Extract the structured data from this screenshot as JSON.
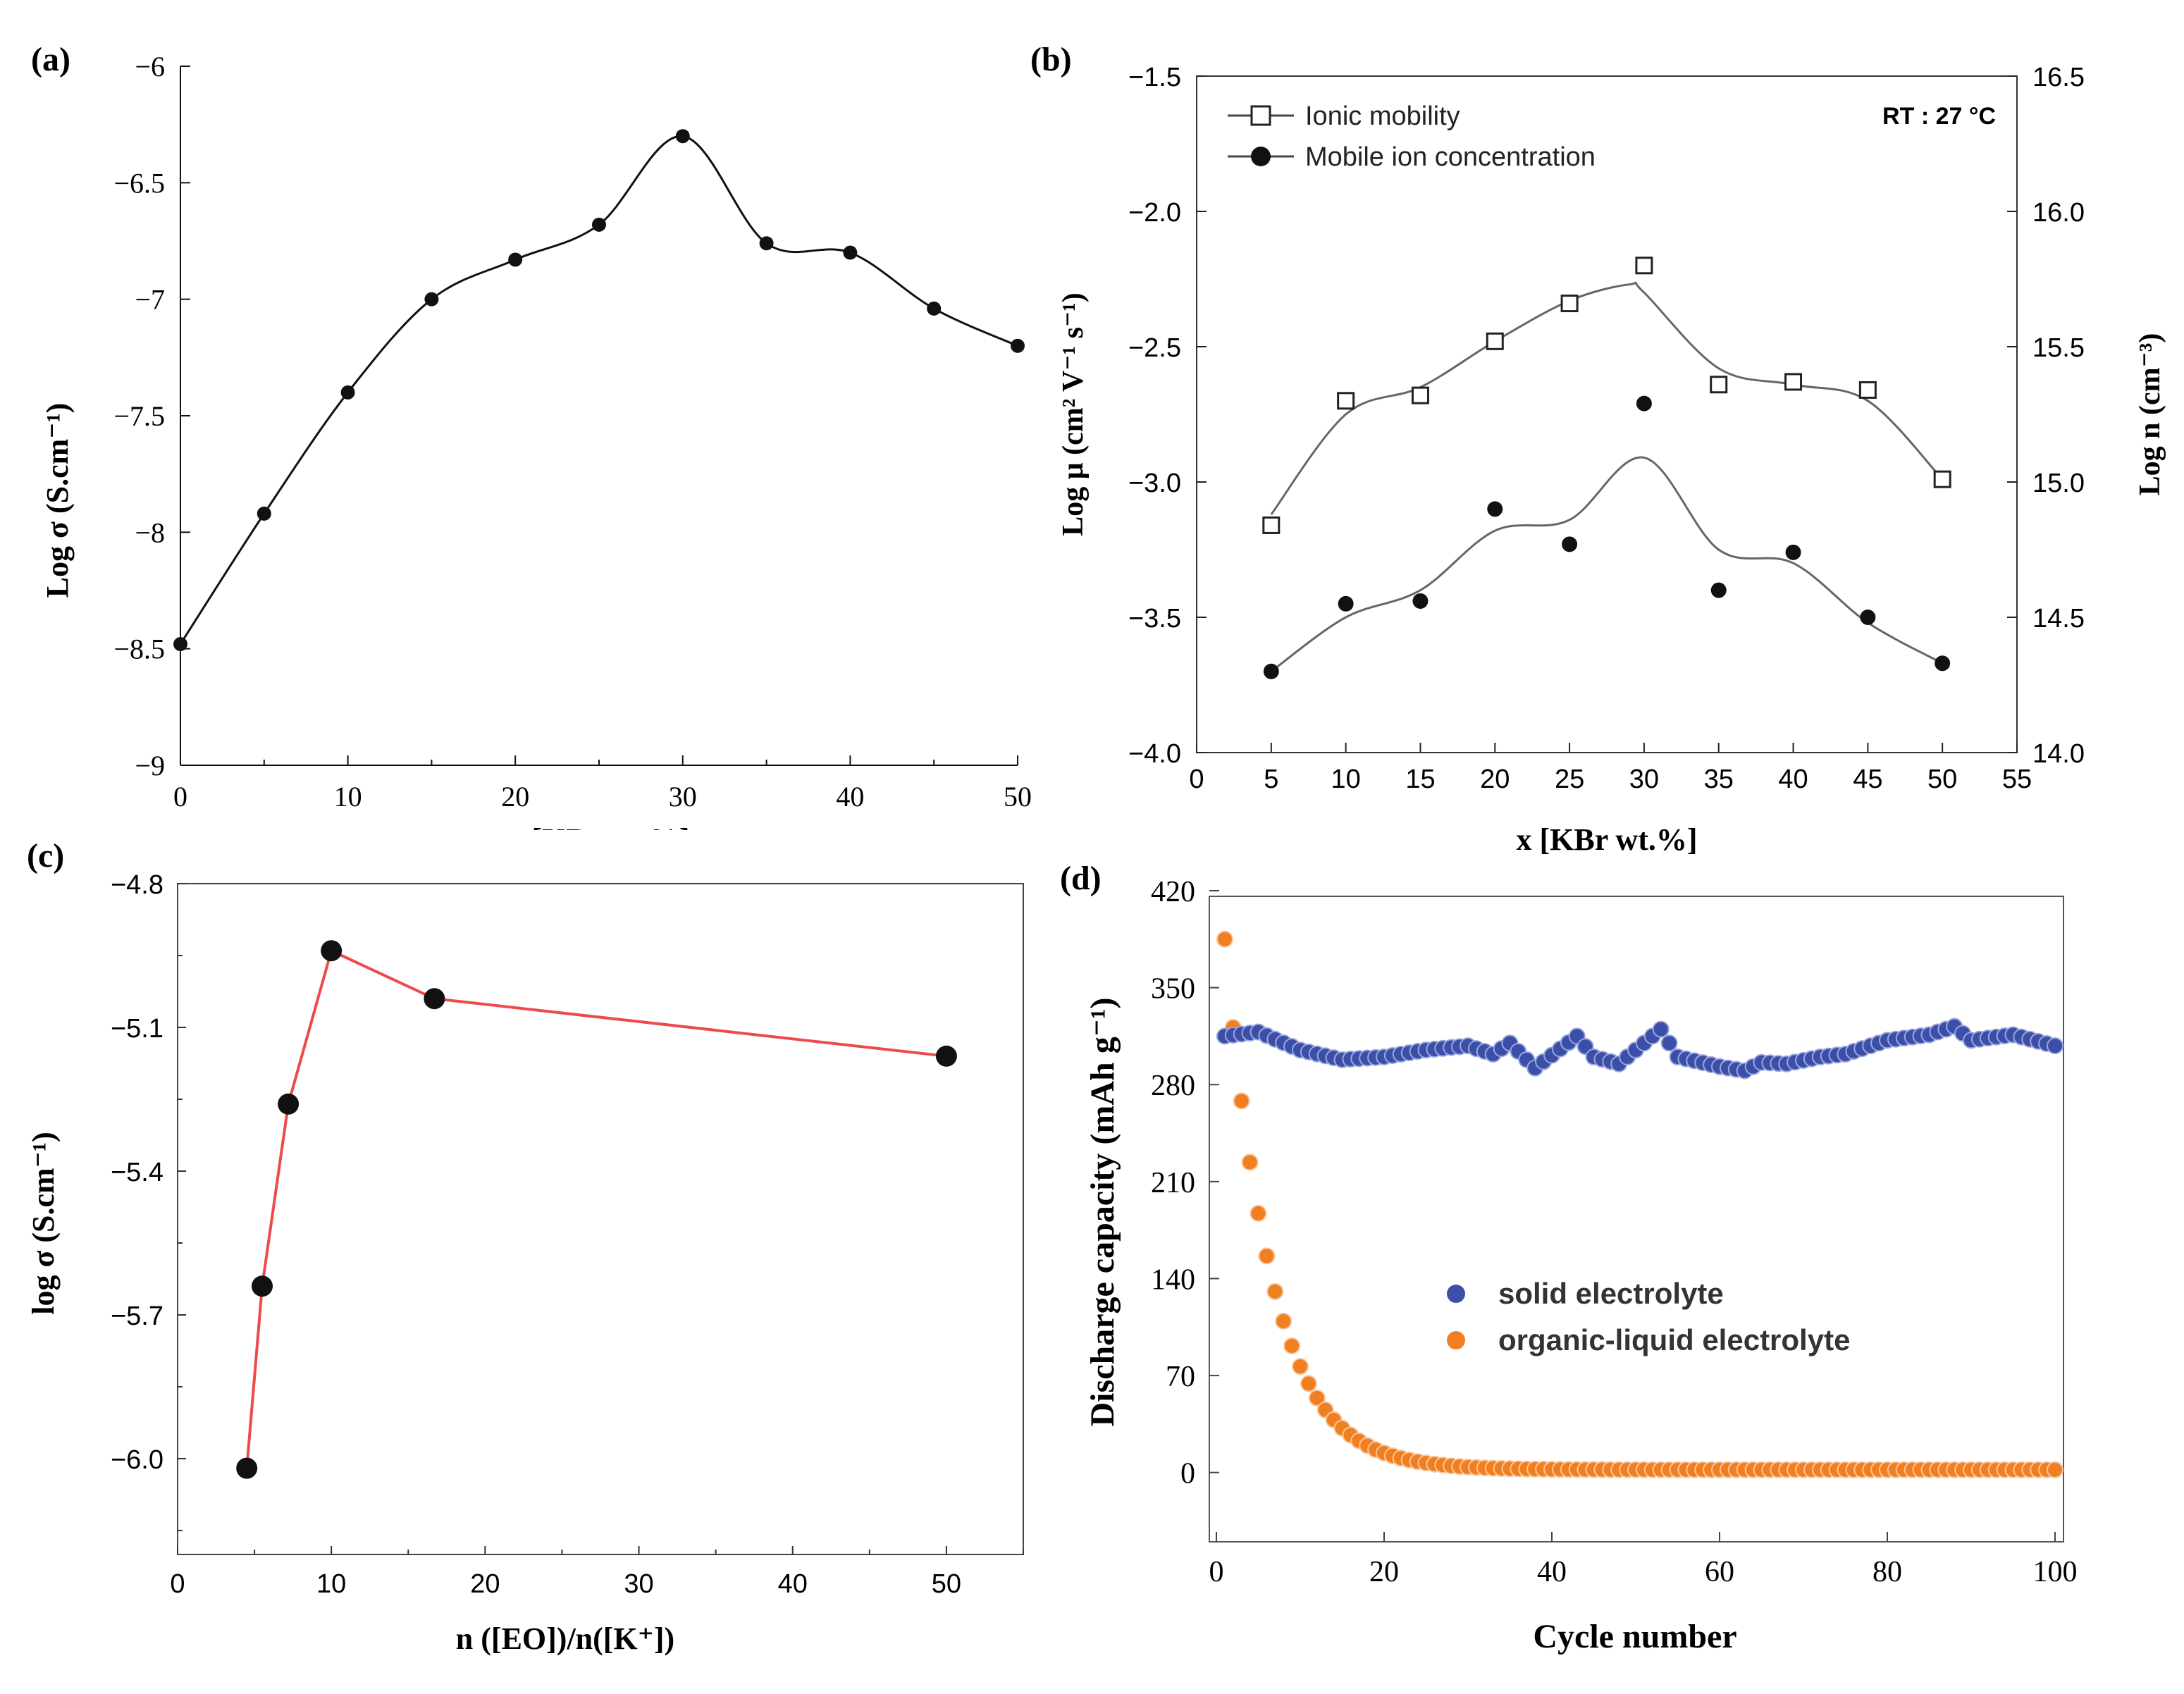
{
  "figure": {
    "panel_labels": [
      "(a)",
      "(b)",
      "(c)",
      "(d)"
    ]
  },
  "chart_data": [
    {
      "id": "a",
      "type": "line",
      "title": "",
      "xlabel": "x [KBr wt.%]",
      "ylabel": "Log σ (S.cm⁻¹)",
      "xlim": [
        0,
        50
      ],
      "ylim": [
        -9,
        -6
      ],
      "xticks": [
        0,
        10,
        20,
        30,
        40,
        50
      ],
      "yticks": [
        -9,
        -8.5,
        -8,
        -7.5,
        -7,
        -6.5,
        -6
      ],
      "ytick_labels": [
        "−9",
        "−8.5",
        "−8",
        "−7.5",
        "−7",
        "−6.5",
        "−6"
      ],
      "series": [
        {
          "name": "conductivity",
          "x": [
            0,
            5,
            10,
            15,
            20,
            25,
            30,
            35,
            40,
            45,
            50
          ],
          "values": [
            -8.48,
            -7.92,
            -7.4,
            -7.0,
            -6.83,
            -6.68,
            -6.3,
            -6.76,
            -6.8,
            -7.04,
            -7.2
          ]
        }
      ]
    },
    {
      "id": "b",
      "type": "scatter",
      "xlabel": "x [KBr wt.%]",
      "ylabel": "Log μ (cm² V⁻¹ s⁻¹)",
      "y2label": "Log n (cm⁻³)",
      "annotation": "RT : 27 °C",
      "xlim": [
        0,
        55
      ],
      "ylim": [
        -4.0,
        -1.5
      ],
      "y2lim": [
        14.0,
        16.5
      ],
      "xticks": [
        0,
        5,
        10,
        15,
        20,
        25,
        30,
        35,
        40,
        45,
        50,
        55
      ],
      "yticks": [
        -4.0,
        -3.5,
        -3.0,
        -2.5,
        -2.0,
        -1.5
      ],
      "ytick_labels": [
        "−4.0",
        "−3.5",
        "−3.0",
        "−2.5",
        "−2.0",
        "−1.5"
      ],
      "y2ticks": [
        14.0,
        14.5,
        15.0,
        15.5,
        16.0,
        16.5
      ],
      "y2tick_labels": [
        "14.0",
        "14.5",
        "15.0",
        "15.5",
        "16.0",
        "16.5"
      ],
      "series": [
        {
          "name": "Ionic mobility",
          "axis": "left",
          "marker": "open-square",
          "x": [
            5,
            10,
            15,
            20,
            25,
            30,
            35,
            40,
            45,
            50
          ],
          "values": [
            -3.16,
            -2.7,
            -2.68,
            -2.48,
            -2.34,
            -2.2,
            -2.64,
            -2.63,
            -2.66,
            -2.99
          ]
        },
        {
          "name": "Mobile ion concentration",
          "axis": "right",
          "marker": "filled-circle",
          "x": [
            5,
            10,
            15,
            20,
            25,
            30,
            35,
            40,
            45,
            50
          ],
          "values": [
            14.3,
            14.55,
            14.56,
            14.9,
            14.77,
            15.29,
            14.6,
            14.74,
            14.5,
            14.33
          ]
        }
      ],
      "fit_curves": [
        {
          "axis": "left",
          "x": [
            5,
            10,
            15,
            20,
            25,
            29,
            30,
            35,
            40,
            45,
            50
          ],
          "values": [
            -3.12,
            -2.75,
            -2.65,
            -2.48,
            -2.33,
            -2.27,
            -2.3,
            -2.58,
            -2.64,
            -2.7,
            -2.99
          ]
        },
        {
          "axis": "right",
          "x": [
            5,
            10,
            15,
            20,
            25,
            30,
            35,
            40,
            45,
            50
          ],
          "values": [
            14.3,
            14.5,
            14.6,
            14.82,
            14.86,
            15.09,
            14.75,
            14.7,
            14.48,
            14.33
          ]
        }
      ]
    },
    {
      "id": "c",
      "type": "line",
      "xlabel": "n ([EO])/n([K⁺])",
      "ylabel": "log σ (S.cm⁻¹)",
      "xlim": [
        0,
        55
      ],
      "ylim": [
        -6.2,
        -4.8
      ],
      "xticks": [
        0,
        10,
        20,
        30,
        40,
        50
      ],
      "yticks": [
        -6.0,
        -5.7,
        -5.4,
        -5.1,
        -4.8
      ],
      "ytick_labels": [
        "−6.0",
        "−5.7",
        "−5.4",
        "−5.1",
        "−4.8"
      ],
      "series": [
        {
          "name": "log σ",
          "x": [
            4.5,
            5.5,
            7.2,
            10,
            16.7,
            50
          ],
          "values": [
            -6.02,
            -5.64,
            -5.26,
            -4.94,
            -5.04,
            -5.16
          ]
        }
      ]
    },
    {
      "id": "d",
      "type": "scatter",
      "xlabel": "Cycle number",
      "ylabel": "Discharge capacity (mAh g⁻¹)",
      "xlim": [
        0,
        100
      ],
      "ylim": [
        -50,
        420
      ],
      "xticks": [
        0,
        20,
        40,
        60,
        80,
        100
      ],
      "yticks": [
        0,
        70,
        140,
        210,
        280,
        350,
        420
      ],
      "series": [
        {
          "name": "solid electrolyte",
          "color": "#3b4fa8",
          "anchors_x": [
            1,
            5,
            10,
            15,
            20,
            25,
            30,
            33,
            35,
            38,
            43,
            45,
            48,
            53,
            55,
            60,
            63,
            65,
            68,
            72,
            75,
            80,
            85,
            88,
            90,
            95,
            100
          ],
          "anchors_y": [
            315,
            318,
            305,
            298,
            300,
            305,
            308,
            302,
            310,
            292,
            315,
            300,
            295,
            320,
            300,
            293,
            290,
            296,
            295,
            300,
            302,
            312,
            316,
            322,
            312,
            316,
            308
          ]
        },
        {
          "name": "organic-liquid electrolyte",
          "color": "#f07f22",
          "initial": 385,
          "plateau": 2,
          "decay_cycles": 5.5
        }
      ]
    }
  ]
}
